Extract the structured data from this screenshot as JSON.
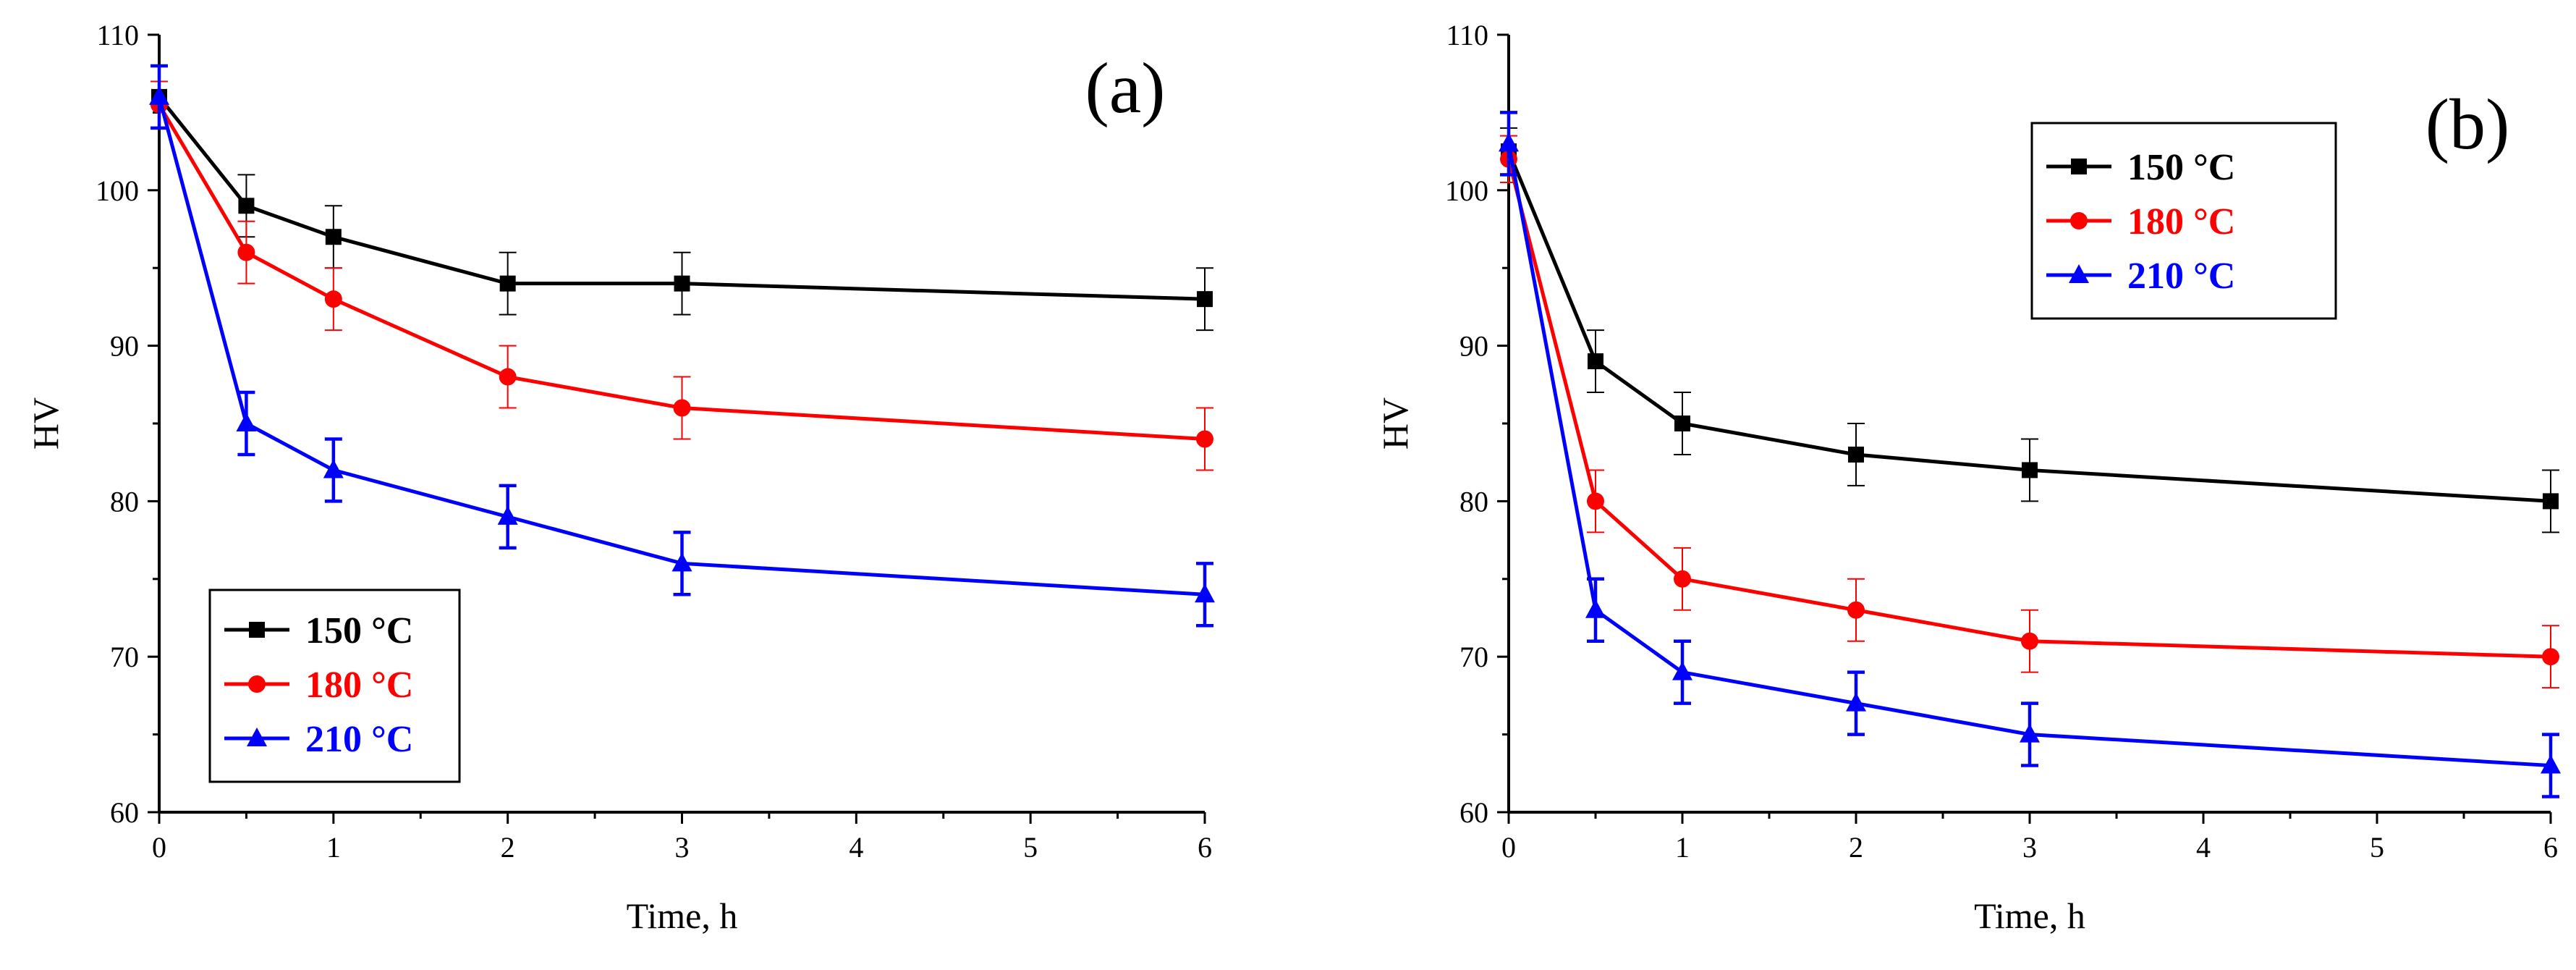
{
  "chart_data": [
    {
      "type": "line",
      "panel_label": "(a)",
      "xlabel": "Time, h",
      "ylabel": "HV",
      "xlim": [
        0,
        6
      ],
      "ylim": [
        60,
        110
      ],
      "xticks": [
        "0",
        "1",
        "2",
        "3",
        "4",
        "5",
        "6"
      ],
      "yticks": [
        "60",
        "70",
        "80",
        "90",
        "100",
        "110"
      ],
      "legend_position": "bottom-left",
      "x": [
        0,
        0.5,
        1,
        2,
        3,
        6
      ],
      "series": [
        {
          "name": "150 °C",
          "color": "#000000",
          "marker": "square",
          "values": [
            106,
            99,
            97,
            94,
            94,
            93
          ],
          "errors": [
            2,
            2,
            2,
            2,
            2,
            2
          ]
        },
        {
          "name": "180 °C",
          "color": "#ff0000",
          "marker": "circle",
          "values": [
            105.5,
            96,
            93,
            88,
            86,
            84
          ],
          "errors": [
            1.5,
            2,
            2,
            2,
            2,
            2
          ]
        },
        {
          "name": "210 °C",
          "color": "#0000ff",
          "marker": "triangle",
          "values": [
            106,
            85,
            82,
            79,
            76,
            74
          ],
          "errors": [
            2,
            2,
            2,
            2,
            2,
            2
          ]
        }
      ]
    },
    {
      "type": "line",
      "panel_label": "(b)",
      "xlabel": "Time, h",
      "ylabel": "HV",
      "xlim": [
        0,
        6
      ],
      "ylim": [
        60,
        110
      ],
      "xticks": [
        "0",
        "1",
        "2",
        "3",
        "4",
        "5",
        "6"
      ],
      "yticks": [
        "60",
        "70",
        "80",
        "90",
        "100",
        "110"
      ],
      "legend_position": "top-left",
      "x": [
        0,
        0.5,
        1,
        2,
        3,
        6
      ],
      "series": [
        {
          "name": "150 °C",
          "color": "#000000",
          "marker": "square",
          "values": [
            102.5,
            89,
            85,
            83,
            82,
            80
          ],
          "errors": [
            1.5,
            2,
            2,
            2,
            2,
            2
          ]
        },
        {
          "name": "180 °C",
          "color": "#ff0000",
          "marker": "circle",
          "values": [
            102,
            80,
            75,
            73,
            71,
            70
          ],
          "errors": [
            1.5,
            2,
            2,
            2,
            2,
            2
          ]
        },
        {
          "name": "210 °C",
          "color": "#0000ff",
          "marker": "triangle",
          "values": [
            103,
            73,
            69,
            67,
            65,
            63
          ],
          "errors": [
            2,
            2,
            2,
            2,
            2,
            2
          ]
        }
      ]
    }
  ]
}
